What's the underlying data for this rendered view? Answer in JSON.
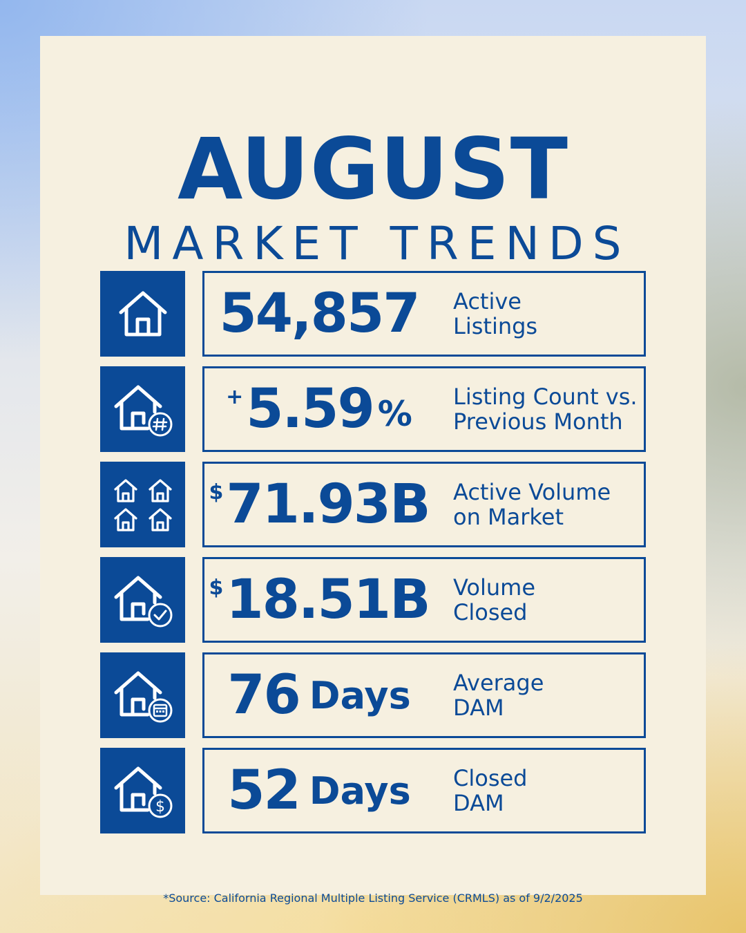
{
  "title": "AUGUST",
  "subtitle": "MARKET TRENDS",
  "stats": [
    {
      "icon": "house-icon",
      "prefix": "",
      "value": "54,857",
      "suffix": "",
      "label": "Active\nListings"
    },
    {
      "icon": "house-hash-icon",
      "prefix": "+",
      "value": "5.59",
      "suffix": "%",
      "label": "Listing Count vs.\nPrevious Month"
    },
    {
      "icon": "four-houses-icon",
      "prefix": "$",
      "value": "71.93B",
      "suffix": "",
      "label": "Active Volume\non Market"
    },
    {
      "icon": "house-check-icon",
      "prefix": "$",
      "value": "18.51B",
      "suffix": "",
      "label": "Volume\nClosed"
    },
    {
      "icon": "house-calendar-icon",
      "prefix": "",
      "value": "76",
      "suffix": "Days",
      "label": "Average\nDAM"
    },
    {
      "icon": "house-dollar-icon",
      "prefix": "",
      "value": "52",
      "suffix": "Days",
      "label": "Closed\nDAM"
    }
  ],
  "source": "*Source: California Regional Multiple Listing Service (CRMLS) as of 9/2/2025",
  "colors": {
    "primary": "#0b4a97",
    "card": "#f6f0e0"
  }
}
